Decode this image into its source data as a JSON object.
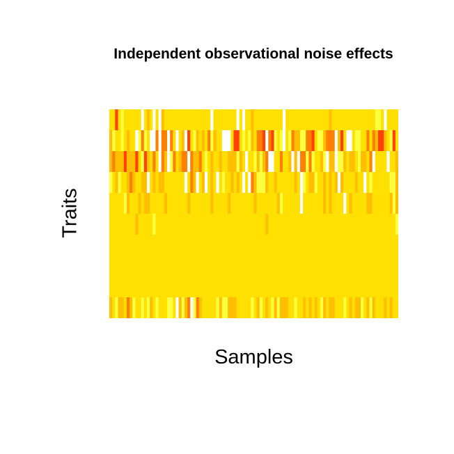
{
  "chart_data": {
    "type": "heatmap",
    "title": "Independent observational noise effects",
    "xlabel": "Samples",
    "ylabel": "Traits",
    "n_samples": 100,
    "n_traits": 10,
    "color_scale": [
      "#ff0000",
      "#ff4000",
      "#ff8000",
      "#ffbf00",
      "#ffe000",
      "#ffff40",
      "#ffffff"
    ],
    "value_range": [
      0,
      6
    ],
    "axes_shown": false,
    "legend": "none",
    "rows": [
      "4414544444464346463444444444444444464444444464644344444444446444444444444444344444444444444455464444",
      "3544543446525466262262464361453434253446664114545342216215456452335522145532226314664554424231134514",
      "3233313331451342462365243226233245434434433353464453532664424436362252544356336553433453342644446443",
      "5435443234433643433444444464236436434645443434646235553443444444346543354434343634444344645444444553",
      "4444453444343344444344444443444444434444434444444434444444354444446444444434344446434444433444444353",
      "4444444443444445444444444444444444444444444444444444443444444444444444444444444444444444444444444445",
      "4444444444444444444444444444444444444444444444444444444444444444444444444444444444444444444444444444",
      "4444444444444444444444444444444444444444444444444444444444444444444444444444444444444444444444444444",
      "4444444444444444444444444444444444444444444444444444444444444444444444444444444444444444444444444444",
      "3453342354454534544455463532652344444535533344444543543453533344544343434534334445434335435344434344"
    ]
  }
}
